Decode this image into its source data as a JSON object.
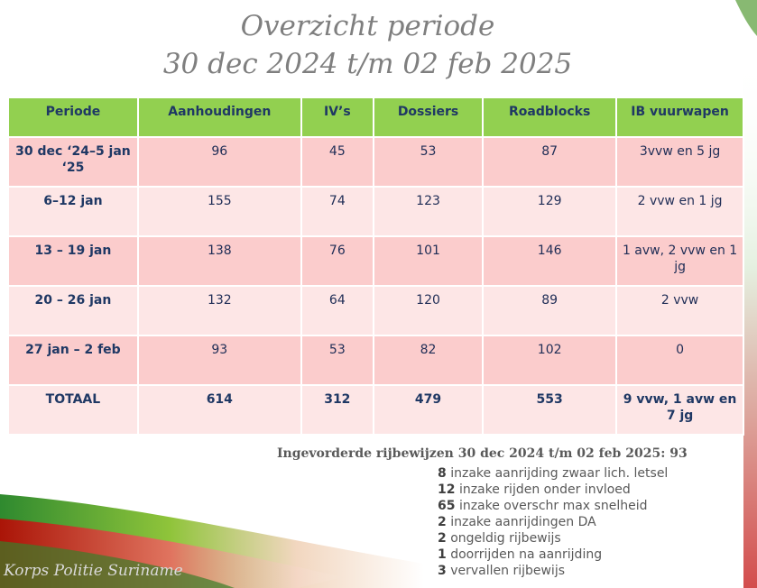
{
  "title": {
    "line1": "Overzicht  periode",
    "line2": "30 dec 2024 t/m 02 feb 2025"
  },
  "table": {
    "headers": [
      "Periode",
      "Aanhoudingen",
      "IV’s",
      "Dossiers",
      "Roadblocks",
      "IB vuurwapen"
    ],
    "rows": [
      [
        "30 dec ‘24–5 jan ‘25",
        "96",
        "45",
        "53",
        "87",
        "3vvw en 5 jg"
      ],
      [
        "6–12 jan",
        "155",
        "74",
        "123",
        "129",
        "2 vvw en 1 jg"
      ],
      [
        "13 – 19 jan",
        "138",
        "76",
        "101",
        "146",
        "1 avw, 2 vvw en 1 jg"
      ],
      [
        "20 – 26 jan",
        "132",
        "64",
        "120",
        "89",
        "2 vvw"
      ],
      [
        "27 jan – 2 feb",
        "93",
        "53",
        "82",
        "102",
        "0"
      ]
    ],
    "total": [
      "TOTAAL",
      "614",
      "312",
      "479",
      "553",
      "9 vvw, 1 avw en 7 jg"
    ]
  },
  "summary": {
    "title": "Ingevorderde rijbewijzen 30 dec 2024 t/m 02 feb 2025: 93",
    "items": [
      {
        "count": "8",
        "text": "inzake aanrijding zwaar lich. letsel"
      },
      {
        "count": "12",
        "text": "inzake rijden onder invloed"
      },
      {
        "count": "65",
        "text": "inzake overschr max snelheid"
      },
      {
        "count": "2",
        "text": "inzake  aanrijdingen DA"
      },
      {
        "count": "2",
        "text": "ongeldig rijbewijs"
      },
      {
        "count": "1",
        "text": "doorrijden na aanrijding"
      },
      {
        "count": "3",
        "text": "vervallen rijbewijs"
      }
    ]
  },
  "footer": {
    "brand": "Korps Politie Suriname"
  },
  "colors": {
    "header_bg": "#92d050",
    "row_dark": "#fbcccc",
    "row_light": "#fde6e6"
  }
}
